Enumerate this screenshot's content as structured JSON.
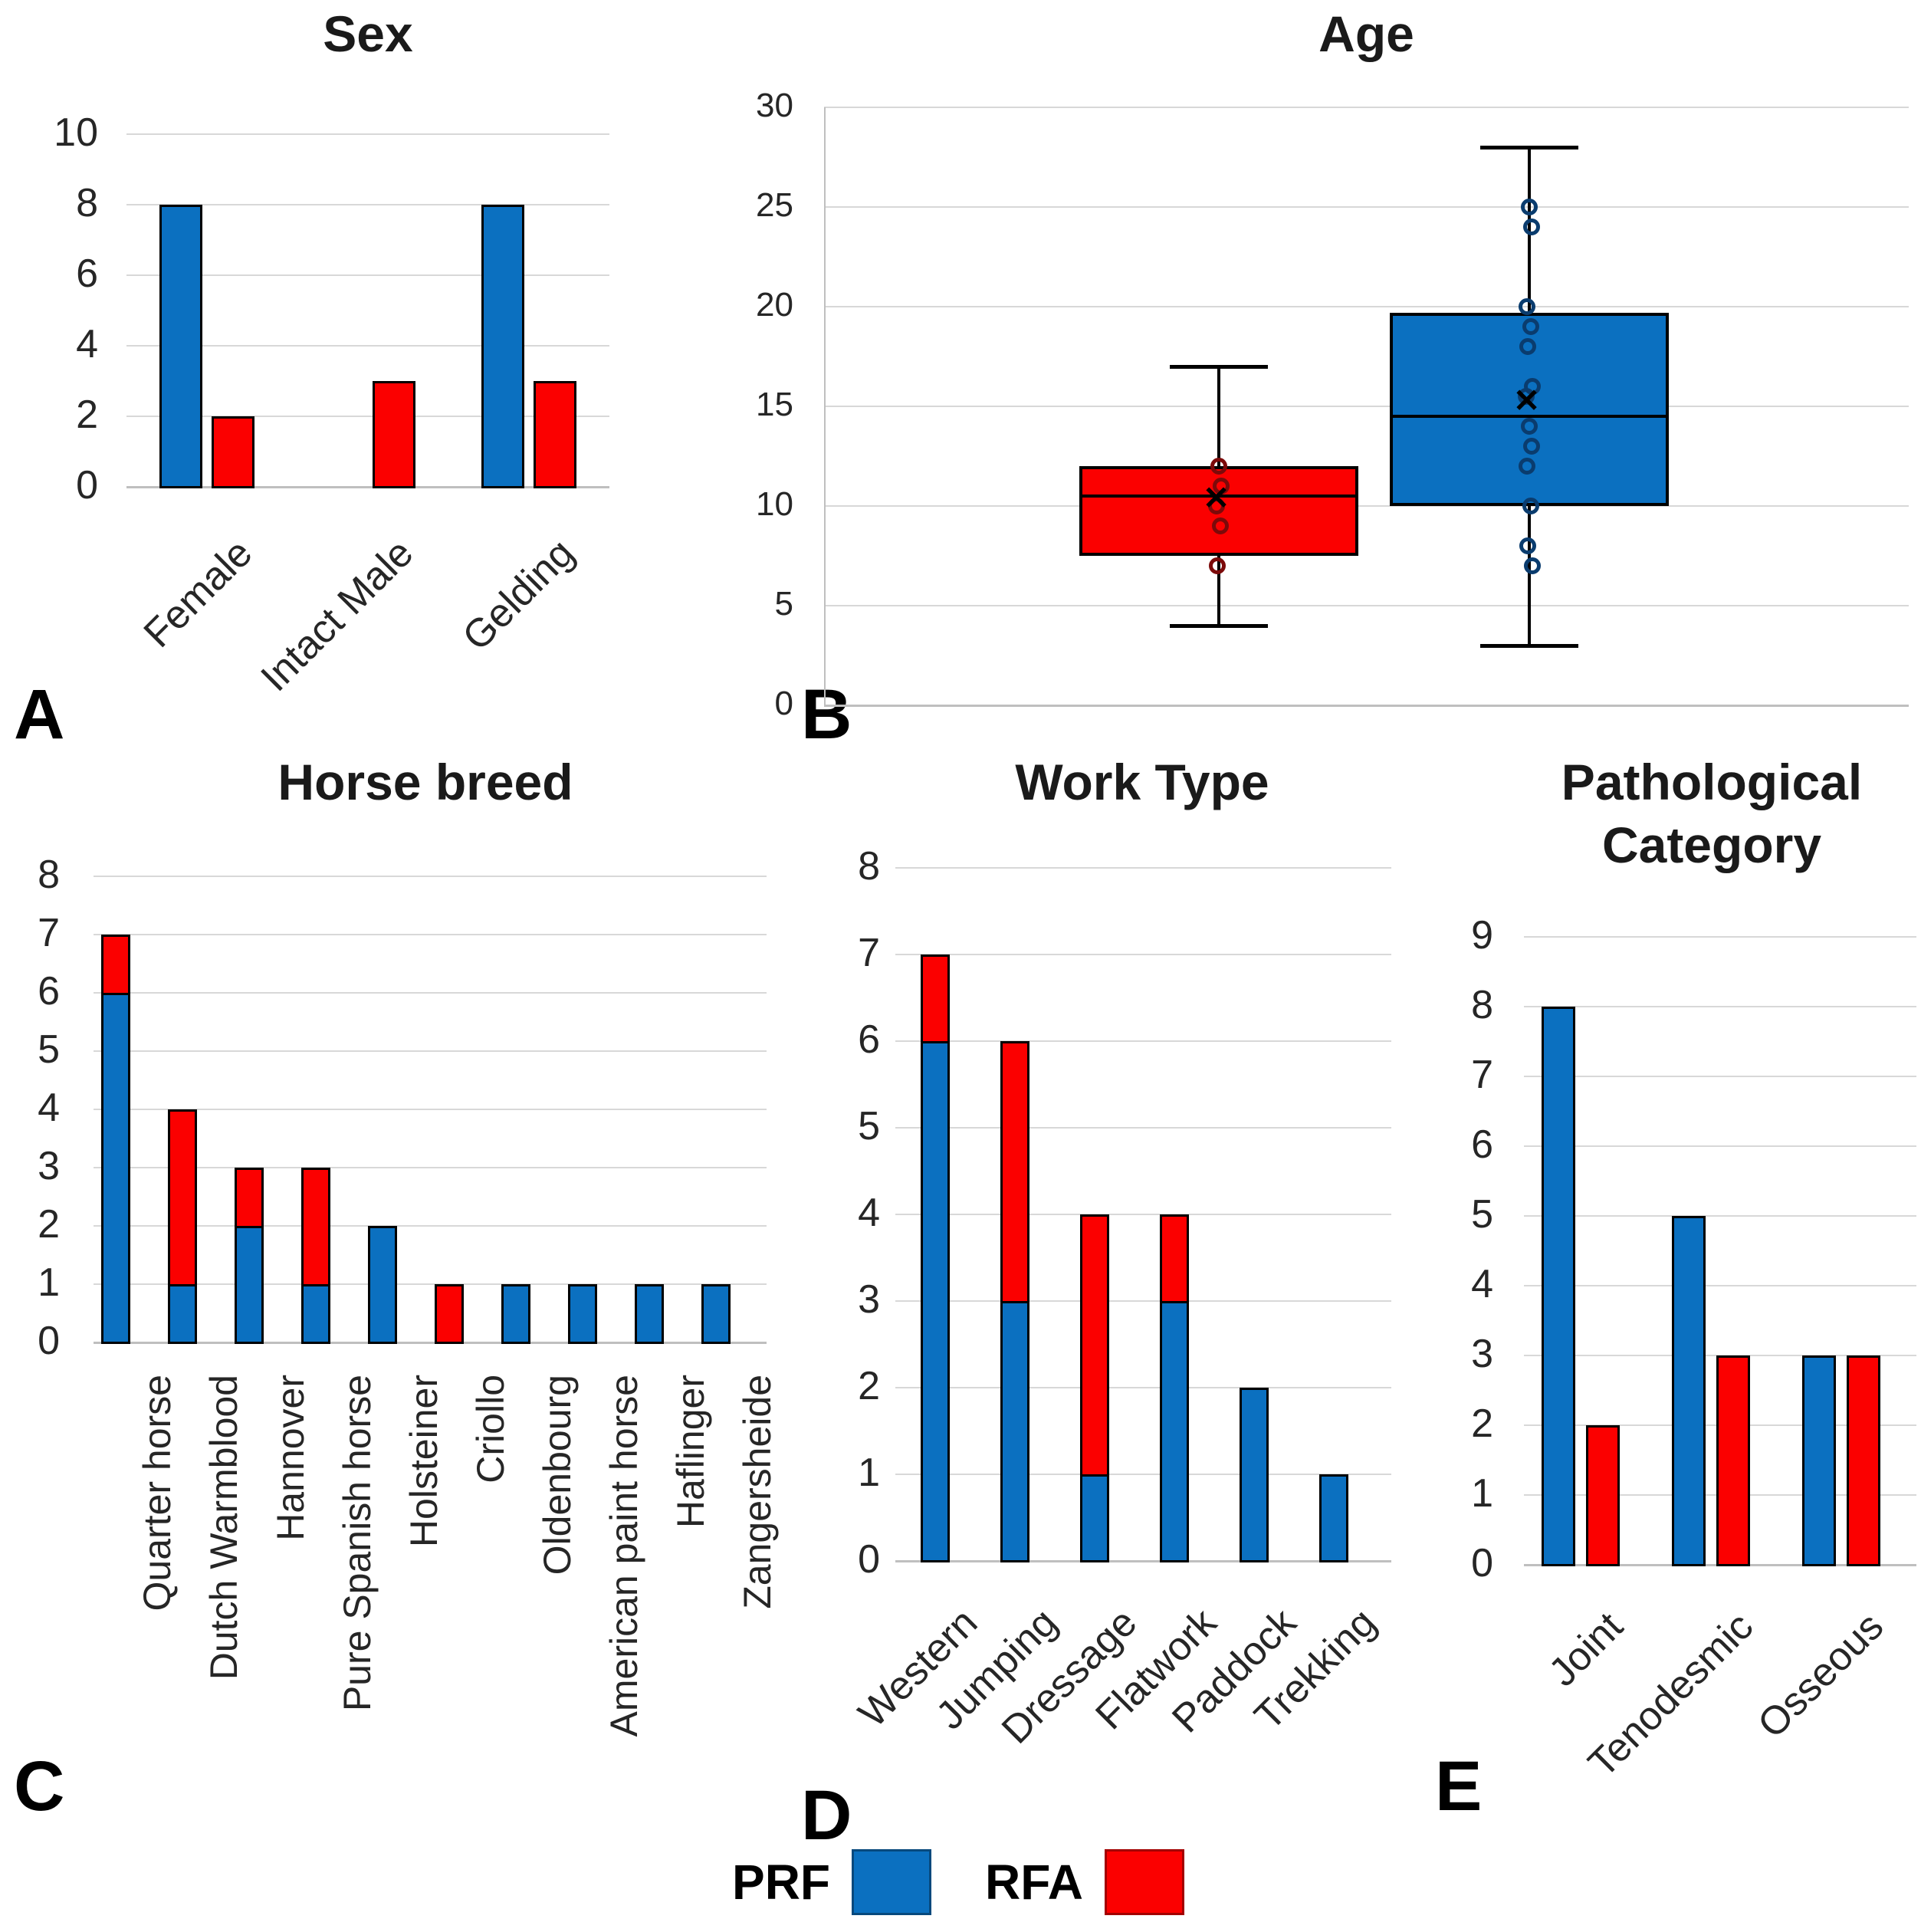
{
  "figure": {
    "description": "Five-panel comparison of PRF vs RFA treated horses",
    "background": "#ffffff"
  },
  "colors": {
    "prf_blue": "#0B70C0",
    "rfa_red": "#FB0000",
    "grid": "#D8D8D8",
    "axis": "#BFBFBF",
    "prf_point_ring": "#0A3C6E",
    "rfa_point_ring": "#7C0A0A",
    "bar_border": "#000000"
  },
  "legend": {
    "items": [
      {
        "label": "PRF",
        "color_key": "prf_blue"
      },
      {
        "label": "RFA",
        "color_key": "rfa_red"
      }
    ]
  },
  "chart_data": [
    {
      "id": "sex",
      "type": "bar",
      "bar_mode": "grouped",
      "title": "Sex",
      "panel_letter": "A",
      "categories": [
        "Female",
        "Intact Male",
        "Gelding"
      ],
      "series": [
        {
          "name": "PRF",
          "color_key": "prf_blue",
          "values": [
            8,
            0,
            8
          ]
        },
        {
          "name": "RFA",
          "color_key": "rfa_red",
          "values": [
            2,
            3,
            3
          ]
        }
      ],
      "ylim": [
        0,
        10
      ],
      "ytick_step": 2,
      "grid": true,
      "label_rotation": 45
    },
    {
      "id": "age",
      "type": "box",
      "title": "Age",
      "panel_letter": "B",
      "ylim": [
        0,
        30
      ],
      "ytick_step": 5,
      "grid": true,
      "series": [
        {
          "name": "RFA",
          "color_key": "rfa_red",
          "point_ring_key": "rfa_point_ring",
          "whisker_low": 4,
          "q1": 7.5,
          "median": 10.5,
          "q3": 12,
          "whisker_high": 17,
          "mean": 10.3,
          "points": [
            12,
            11,
            10,
            9,
            7
          ]
        },
        {
          "name": "PRF",
          "color_key": "prf_blue",
          "point_ring_key": "prf_point_ring",
          "whisker_low": 3,
          "q1": 10,
          "median": 14.5,
          "q3": 19.7,
          "whisker_high": 28,
          "mean": 15.2,
          "points": [
            25,
            24,
            20,
            19,
            18,
            16,
            15.5,
            14,
            13,
            12,
            10,
            8,
            7
          ]
        }
      ]
    },
    {
      "id": "horse_breed",
      "type": "bar",
      "bar_mode": "stacked",
      "title": "Horse breed",
      "panel_letter": "C",
      "categories": [
        "Quarter horse",
        "Dutch Warmblood",
        "Hannover",
        "Pure Spanish horse",
        "Holsteiner",
        "Criollo",
        "Oldenbourg",
        "American paint horse",
        "Haflinger",
        "Zangersheide"
      ],
      "series": [
        {
          "name": "PRF",
          "color_key": "prf_blue",
          "values": [
            6,
            1,
            2,
            1,
            2,
            0,
            1,
            1,
            1,
            1
          ]
        },
        {
          "name": "RFA",
          "color_key": "rfa_red",
          "values": [
            1,
            3,
            1,
            2,
            0,
            1,
            0,
            0,
            0,
            0
          ]
        }
      ],
      "ylim": [
        0,
        8
      ],
      "ytick_step": 1,
      "grid": true,
      "label_rotation": 90
    },
    {
      "id": "work_type",
      "type": "bar",
      "bar_mode": "stacked",
      "title": "Work Type",
      "panel_letter": "D",
      "categories": [
        "Western",
        "Jumping",
        "Dressage",
        "Flatwork",
        "Paddock",
        "Trekking"
      ],
      "series": [
        {
          "name": "PRF",
          "color_key": "prf_blue",
          "values": [
            6,
            3,
            1,
            3,
            2,
            1
          ]
        },
        {
          "name": "RFA",
          "color_key": "rfa_red",
          "values": [
            1,
            3,
            3,
            1,
            0,
            0
          ]
        }
      ],
      "ylim": [
        0,
        8
      ],
      "ytick_step": 1,
      "grid": true,
      "label_rotation": 45
    },
    {
      "id": "pathological_category",
      "type": "bar",
      "bar_mode": "grouped",
      "title": "Pathological Category",
      "title_line1": "Pathological",
      "title_line2": "Category",
      "panel_letter": "E",
      "categories": [
        "Joint",
        "Tenodesmic",
        "Osseous"
      ],
      "series": [
        {
          "name": "PRF",
          "color_key": "prf_blue",
          "values": [
            8,
            5,
            3
          ]
        },
        {
          "name": "RFA",
          "color_key": "rfa_red",
          "values": [
            2,
            3,
            3
          ]
        }
      ],
      "ylim": [
        0,
        9
      ],
      "ytick_step": 1,
      "grid": true,
      "label_rotation": 45
    }
  ]
}
